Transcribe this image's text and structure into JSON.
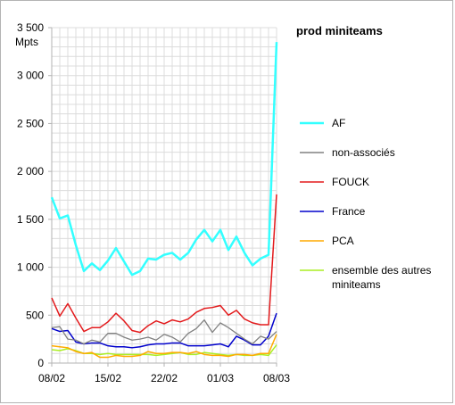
{
  "chart_data": {
    "type": "line",
    "title": "prod miniteams",
    "ylabel": "Mpts",
    "xlabel": "",
    "ylim": [
      0,
      3500
    ],
    "yticks": [
      0,
      500,
      1000,
      1500,
      2000,
      2500,
      3000,
      3500
    ],
    "ytick_labels": [
      "0",
      "500",
      "1 000",
      "1 500",
      "2 000",
      "2 500",
      "3 000",
      "3 500"
    ],
    "x_tick_labels": [
      {
        "index": 0,
        "label": "08/02"
      },
      {
        "index": 7,
        "label": "15/02"
      },
      {
        "index": 14,
        "label": "22/02"
      },
      {
        "index": 21,
        "label": "01/03"
      },
      {
        "index": 28,
        "label": "08/03"
      }
    ],
    "grid": true,
    "legend_position": "right",
    "series": [
      {
        "name": "AF",
        "color": "#33ffff",
        "width": 2.5,
        "values": [
          1730,
          1510,
          1540,
          1230,
          960,
          1040,
          970,
          1070,
          1200,
          1060,
          920,
          960,
          1090,
          1080,
          1130,
          1150,
          1080,
          1150,
          1290,
          1390,
          1270,
          1390,
          1180,
          1320,
          1150,
          1020,
          1090,
          1130,
          3350
        ]
      },
      {
        "name": "non-associés",
        "color": "#808080",
        "width": 1.3,
        "values": [
          370,
          380,
          250,
          240,
          200,
          240,
          220,
          310,
          310,
          270,
          240,
          250,
          270,
          240,
          300,
          270,
          220,
          310,
          360,
          450,
          320,
          420,
          370,
          310,
          250,
          200,
          280,
          250,
          330
        ]
      },
      {
        "name": "FOUCK",
        "color": "#e31a1c",
        "width": 1.5,
        "values": [
          680,
          490,
          620,
          470,
          330,
          370,
          370,
          430,
          520,
          440,
          340,
          320,
          390,
          440,
          410,
          450,
          430,
          460,
          530,
          570,
          580,
          600,
          500,
          550,
          460,
          420,
          400,
          400,
          1760
        ]
      },
      {
        "name": "France",
        "color": "#0000cc",
        "width": 1.5,
        "values": [
          360,
          330,
          340,
          220,
          200,
          210,
          210,
          180,
          170,
          170,
          160,
          170,
          190,
          200,
          200,
          210,
          210,
          180,
          180,
          180,
          190,
          200,
          170,
          280,
          240,
          190,
          190,
          280,
          520
        ]
      },
      {
        "name": "PCA",
        "color": "#ffaa00",
        "width": 1.5,
        "values": [
          180,
          170,
          160,
          120,
          100,
          110,
          60,
          60,
          80,
          70,
          70,
          80,
          120,
          100,
          100,
          110,
          110,
          100,
          120,
          90,
          80,
          80,
          70,
          90,
          90,
          80,
          100,
          100,
          300
        ]
      },
      {
        "name": "ensemble des autres miniteams",
        "color": "#aaee22",
        "width": 1.5,
        "values": [
          140,
          130,
          150,
          130,
          100,
          100,
          90,
          100,
          90,
          90,
          90,
          90,
          90,
          80,
          90,
          100,
          110,
          90,
          90,
          110,
          100,
          90,
          80,
          90,
          80,
          80,
          90,
          80,
          190
        ]
      }
    ],
    "legend": [
      {
        "series": 0,
        "lines": [
          "AF"
        ]
      },
      {
        "series": 1,
        "lines": [
          "non-associés"
        ]
      },
      {
        "series": 2,
        "lines": [
          "FOUCK"
        ]
      },
      {
        "series": 3,
        "lines": [
          "France"
        ]
      },
      {
        "series": 4,
        "lines": [
          "PCA"
        ]
      },
      {
        "series": 5,
        "lines": [
          "ensemble des autres",
          "miniteams"
        ]
      }
    ]
  }
}
